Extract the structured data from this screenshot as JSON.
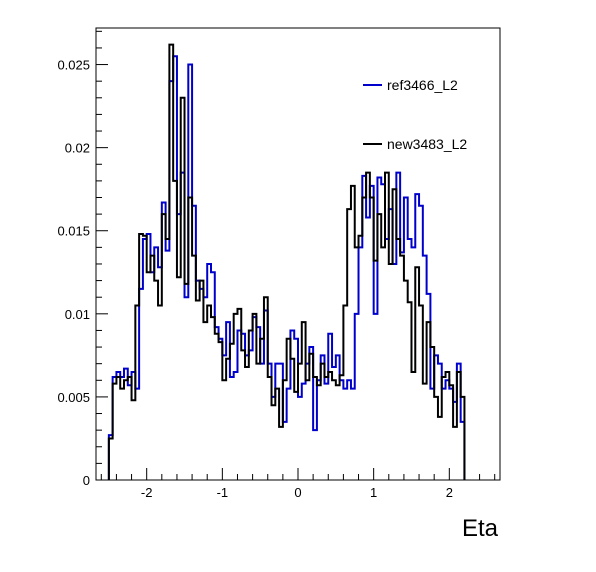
{
  "chart_data": {
    "type": "line",
    "step": true,
    "xlabel": "Eta",
    "ylabel": "",
    "xlim": [
      -2.67,
      2.67
    ],
    "ylim": [
      0,
      0.0272
    ],
    "xticks": [
      -2,
      -1,
      0,
      1,
      2
    ],
    "xtick_labels": [
      "-2",
      "-1",
      "0",
      "1",
      "2"
    ],
    "yticks": [
      0,
      0.005,
      0.01,
      0.015,
      0.02,
      0.025
    ],
    "ytick_labels": [
      "0",
      "0.005",
      "0.01",
      "0.015",
      "0.02",
      "0.025"
    ],
    "legend_position": "top-right",
    "bin_edges_start": -2.5,
    "bin_width": 0.05,
    "series": [
      {
        "name": "ref3466_L2",
        "color": "#0000cc",
        "values": [
          0.0027,
          0.0062,
          0.0065,
          0.0062,
          0.0067,
          0.0057,
          0.0065,
          0.0055,
          0.0115,
          0.0145,
          0.0148,
          0.0125,
          0.014,
          0.0128,
          0.0167,
          0.0138,
          0.024,
          0.0255,
          0.016,
          0.0185,
          0.011,
          0.025,
          0.0165,
          0.012,
          0.0115,
          0.011,
          0.013,
          0.0125,
          0.0092,
          0.0085,
          0.0075,
          0.0095,
          0.0062,
          0.0065,
          0.009,
          0.0088,
          0.0075,
          0.0078,
          0.0098,
          0.0092,
          0.007,
          0.0102,
          0.007,
          0.005,
          0.007,
          0.007,
          0.0035,
          0.0055,
          0.009,
          0.0085,
          0.005,
          0.0058,
          0.007,
          0.008,
          0.003,
          0.006,
          0.0075,
          0.0058,
          0.0088,
          0.0068,
          0.0075,
          0.006,
          0.0055,
          0.006,
          0.0055,
          0.01,
          0.014,
          0.0183,
          0.0158,
          0.0177,
          0.01,
          0.0182,
          0.0178,
          0.0145,
          0.0163,
          0.013,
          0.0185,
          0.0137,
          0.017,
          0.0145,
          0.014,
          0.0172,
          0.0165,
          0.0135,
          0.0112,
          0.0055,
          0.0075,
          0.007,
          0.0055,
          0.006,
          0.0055,
          0.0047,
          0.007,
          0.0035
        ]
      },
      {
        "name": "new3483_L2",
        "color": "#000000",
        "values": [
          0.0025,
          0.0058,
          0.0062,
          0.0055,
          0.006,
          0.0062,
          0.0048,
          0.0105,
          0.0148,
          0.0147,
          0.0125,
          0.0135,
          0.012,
          0.0105,
          0.016,
          0.0145,
          0.0262,
          0.018,
          0.0122,
          0.023,
          0.0118,
          0.017,
          0.0135,
          0.0108,
          0.012,
          0.0095,
          0.0105,
          0.0098,
          0.0088,
          0.0083,
          0.006,
          0.0073,
          0.0082,
          0.01,
          0.0103,
          0.0078,
          0.0068,
          0.009,
          0.01,
          0.007,
          0.0085,
          0.011,
          0.0062,
          0.0045,
          0.0055,
          0.0032,
          0.006,
          0.0085,
          0.0073,
          0.0053,
          0.007,
          0.0095,
          0.006,
          0.0076,
          0.0062,
          0.0057,
          0.007,
          0.0062,
          0.0065,
          0.006,
          0.0057,
          0.0063,
          0.0105,
          0.0163,
          0.0177,
          0.014,
          0.0147,
          0.017,
          0.0185,
          0.017,
          0.0132,
          0.016,
          0.014,
          0.0185,
          0.013,
          0.0175,
          0.0145,
          0.0135,
          0.012,
          0.0107,
          0.0065,
          0.0128,
          0.0105,
          0.0058,
          0.0095,
          0.008,
          0.005,
          0.0038,
          0.0062,
          0.0065,
          0.0057,
          0.0032,
          0.0065,
          0.005
        ]
      }
    ]
  }
}
